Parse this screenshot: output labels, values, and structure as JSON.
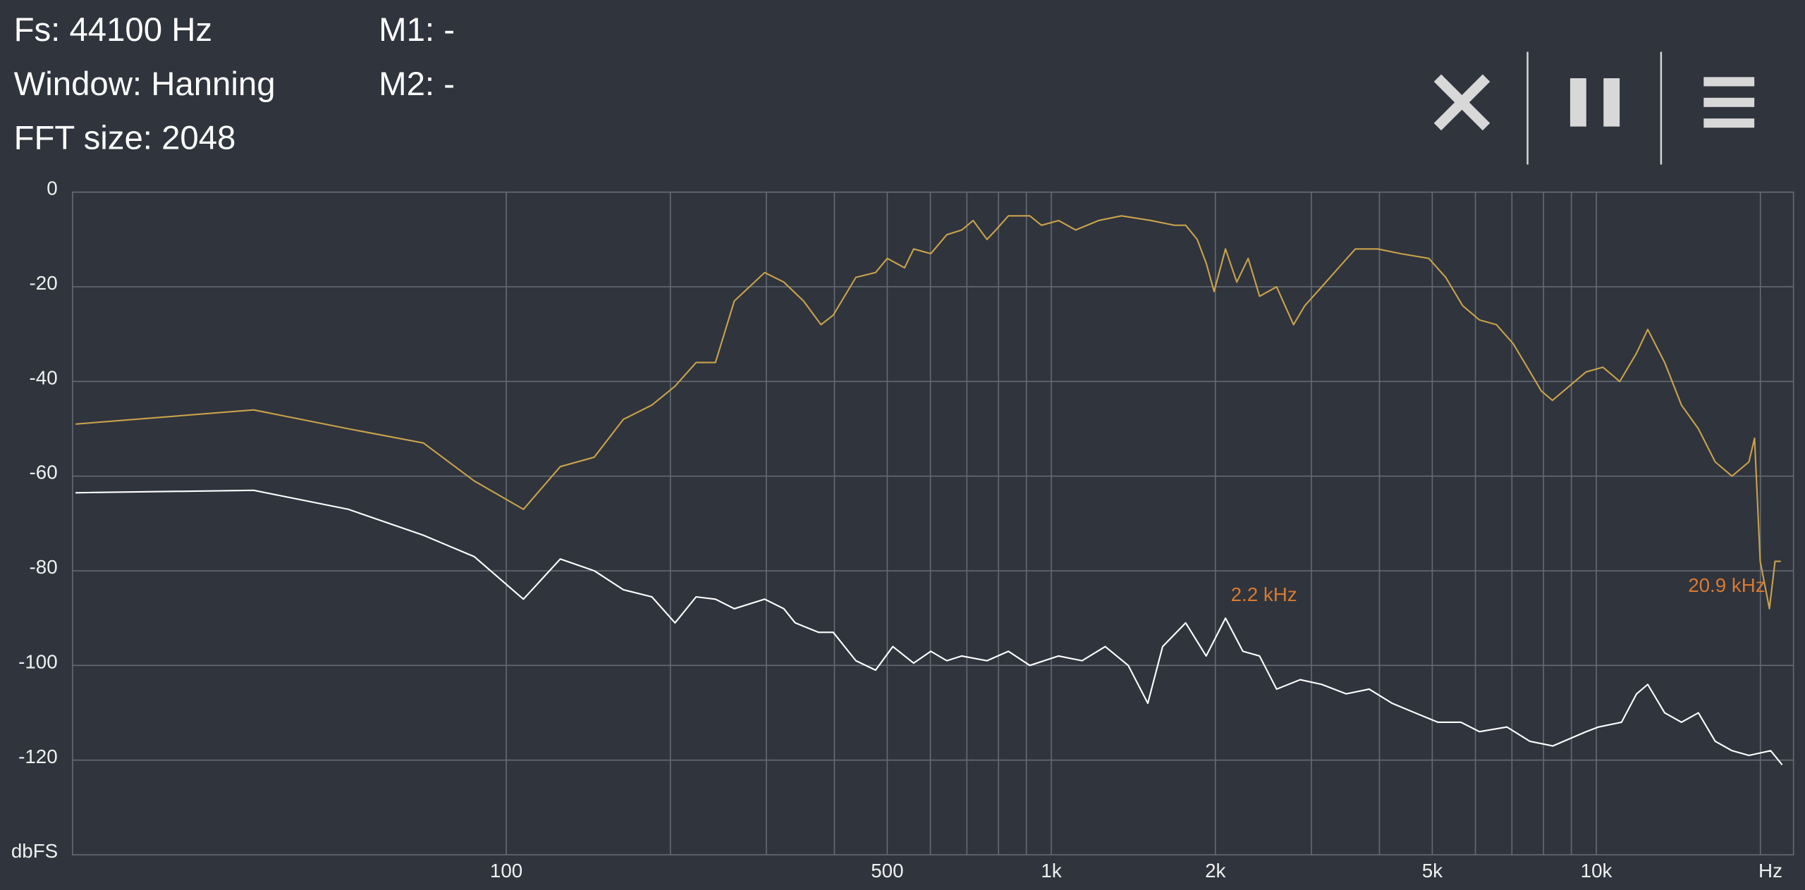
{
  "header": {
    "fs": "Fs: 44100 Hz",
    "window": "Window: Hanning",
    "fft_size": "FFT size: 2048",
    "m1": "M1: -",
    "m2": "M2: -"
  },
  "chart_data": {
    "type": "line",
    "xscale": "log",
    "grid": true,
    "xlabel": "Hz",
    "ylabel": "dbFS",
    "xlim": [
      16,
      23000
    ],
    "ylim": [
      -140,
      0
    ],
    "xticks": [
      100,
      500,
      {
        "value": 1000,
        "label": "1k"
      },
      {
        "value": 2000,
        "label": "2k"
      },
      {
        "value": 5000,
        "label": "5k"
      },
      {
        "value": 10000,
        "label": "10k"
      }
    ],
    "xminor": [
      200,
      300,
      400,
      600,
      700,
      800,
      900,
      3000,
      4000,
      6000,
      7000,
      8000,
      9000,
      20000
    ],
    "yticks": [
      0,
      -20,
      -40,
      -60,
      -80,
      -100,
      -120
    ],
    "annotations": [
      {
        "text": "2.2  kHz",
        "color": "#d97a30"
      },
      {
        "text": "20.9  kHz",
        "color": "#d97a30"
      }
    ],
    "series": [
      {
        "color": "#c9a24a",
        "x": [
          16.2,
          34.4,
          51.3,
          70.5,
          87.3,
          107.5,
          125.6,
          145,
          164,
          185,
          204,
          223,
          242,
          262,
          298,
          323,
          351,
          378,
          398,
          438,
          476,
          500,
          538,
          559,
          601,
          643,
          685,
          719,
          762,
          791,
          834,
          913,
          959,
          1031,
          1108,
          1221,
          1345,
          1524,
          1682,
          1764,
          1852,
          1924,
          1989,
          2087,
          2189,
          2297,
          2411,
          2591,
          2782,
          2919,
          3135,
          3365,
          3613,
          3975,
          4375,
          4927,
          5293,
          5684,
          6104,
          6554,
          7038,
          7558,
          7924,
          8309,
          8919,
          9576,
          10282,
          11040,
          11855,
          12429,
          13346,
          14331,
          15388,
          16523,
          17742,
          19051,
          19514,
          19989,
          20775,
          21280,
          21797
        ],
        "values": [
          -49,
          -46,
          -50,
          -53,
          -61,
          -67,
          -58,
          -56,
          -48,
          -45,
          -41,
          -36,
          -36,
          -23,
          -17,
          -19,
          -23,
          -28,
          -26,
          -18,
          -17,
          -14,
          -16,
          -12,
          -13,
          -9,
          -8,
          -6,
          -10,
          -8,
          -5,
          -5,
          -7,
          -6,
          -8,
          -6,
          -5,
          -6,
          -7,
          -7,
          -10,
          -15,
          -21,
          -12,
          -19,
          -14,
          -22,
          -20,
          -28,
          -24,
          -20,
          -16,
          -12,
          -12,
          -13,
          -14,
          -18,
          -24,
          -27,
          -28,
          -32,
          -38,
          -42,
          -44,
          -41,
          -38,
          -37,
          -40,
          -34,
          -29,
          -36,
          -45,
          -50,
          -57,
          -60,
          -57,
          -52,
          -78,
          -88,
          -78,
          -78
        ]
      },
      {
        "color": "#ffffff",
        "x": [
          16.2,
          34.4,
          51.3,
          70.5,
          87.3,
          107.5,
          125.6,
          145,
          164,
          185,
          204,
          223,
          242,
          262,
          298,
          323,
          339,
          374,
          398,
          438,
          476,
          512,
          559,
          601,
          643,
          685,
          762,
          834,
          913,
          1031,
          1139,
          1256,
          1384,
          1503,
          1601,
          1764,
          1924,
          2087,
          2246,
          2411,
          2591,
          2862,
          3135,
          3476,
          3830,
          4220,
          4649,
          5123,
          5644,
          6104,
          6851,
          7549,
          8318,
          9576,
          10097,
          11124,
          11855,
          12429,
          13346,
          14331,
          15388,
          16523,
          17742,
          19051,
          20893,
          21930
        ],
        "values": [
          -63.5,
          -63,
          -67,
          -72.5,
          -77,
          -86,
          -77.5,
          -80,
          -84,
          -85.5,
          -91,
          -85.5,
          -86,
          -88,
          -86,
          -88,
          -91,
          -93,
          -93,
          -99,
          -101,
          -96,
          -99.5,
          -97,
          -99,
          -98,
          -99,
          -97,
          -100,
          -98,
          -99,
          -96,
          -100,
          -108,
          -96,
          -91,
          -98,
          -90,
          -97,
          -98,
          -105,
          -103,
          -104,
          -106,
          -105,
          -108,
          -110,
          -112,
          -112,
          -114,
          -113,
          -116,
          -117,
          -114,
          -113,
          -112,
          -106,
          -104,
          -110,
          -112,
          -110,
          -116,
          -118,
          -119,
          -118,
          -121
        ]
      }
    ]
  }
}
